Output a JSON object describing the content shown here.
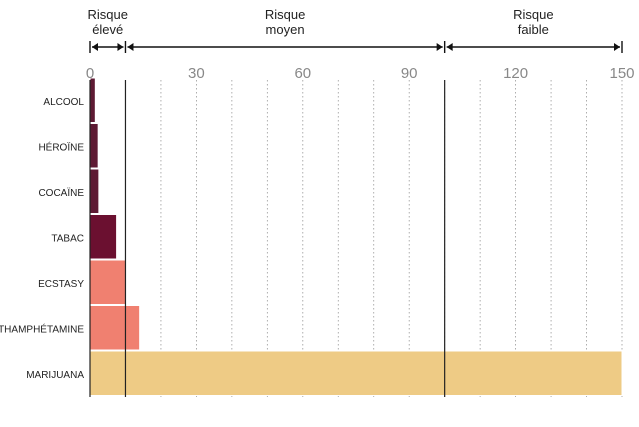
{
  "chart_data": {
    "type": "bar",
    "orientation": "horizontal",
    "title": "",
    "xlabel": "",
    "ylabel": "",
    "xlim": [
      0,
      150
    ],
    "ticks": [
      0,
      30,
      60,
      90,
      120,
      150
    ],
    "grid": "vertical dotted every 10",
    "zones": [
      {
        "label_line1": "Risque",
        "label_line2": "élevé",
        "from": 0,
        "to": 10
      },
      {
        "label_line1": "Risque",
        "label_line2": "moyen",
        "from": 10,
        "to": 100
      },
      {
        "label_line1": "Risque",
        "label_line2": "faible",
        "from": 100,
        "to": 150
      }
    ],
    "categories": [
      "ALCOOL",
      "HÉROÏNE",
      "COCAÏNE",
      "TABAC",
      "ECSTASY",
      "MÉTHAMPHÉTAMINE",
      "MARIJUANA"
    ],
    "values": [
      1.5,
      2.3,
      2.5,
      7.5,
      10,
      14,
      150
    ],
    "colors": [
      "#5e1a33",
      "#5e1a33",
      "#5e1a33",
      "#6b1030",
      "#f08070",
      "#f08070",
      "#eecb85"
    ]
  }
}
